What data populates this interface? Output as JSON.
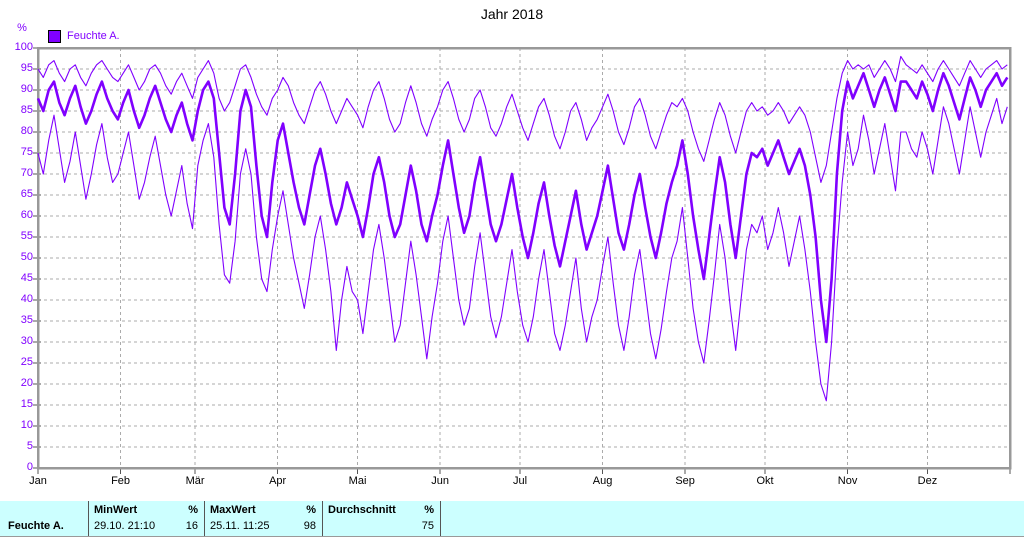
{
  "title": "Jahr 2018",
  "legend": {
    "label": "Feuchte A."
  },
  "colors": {
    "series": "#8000FF",
    "axis_label": "#8000FF",
    "frame": "#999999",
    "grid": "#ABABAB",
    "tick": "#555555",
    "table_bg": "#CCFFFF",
    "table_border": "#555555"
  },
  "chart_data": {
    "type": "line",
    "title": "Jahr 2018",
    "ylabel": "%",
    "xlabel": "",
    "ylim": [
      0,
      100
    ],
    "ytick_step": 5,
    "grid": "dashed",
    "legend_position": "top-left",
    "legend_entries": [
      "Feuchte A."
    ],
    "x_tick_labels": [
      "Jan",
      "Feb",
      "Mär",
      "Apr",
      "Mai",
      "Jun",
      "Jul",
      "Aug",
      "Sep",
      "Okt",
      "Nov",
      "Dez"
    ],
    "month_start_days": [
      0,
      31,
      59,
      90,
      120,
      151,
      181,
      212,
      243,
      273,
      304,
      334
    ],
    "days_in_year": 365,
    "sample_interval_days": 2,
    "series": [
      {
        "name": "daily-max",
        "role": "max",
        "line_width": 1.1,
        "values": [
          95,
          93,
          96,
          97,
          94,
          92,
          95,
          96,
          93,
          91,
          94,
          96,
          97,
          95,
          93,
          92,
          94,
          96,
          93,
          90,
          92,
          95,
          96,
          94,
          91,
          89,
          92,
          94,
          91,
          88,
          93,
          95,
          97,
          94,
          88,
          85,
          87,
          91,
          95,
          96,
          93,
          89,
          86,
          84,
          88,
          90,
          93,
          91,
          87,
          84,
          82,
          86,
          90,
          92,
          89,
          85,
          82,
          85,
          88,
          86,
          84,
          81,
          86,
          90,
          92,
          88,
          83,
          80,
          82,
          87,
          91,
          87,
          82,
          79,
          83,
          86,
          90,
          92,
          88,
          83,
          80,
          83,
          88,
          90,
          86,
          81,
          79,
          82,
          86,
          89,
          85,
          81,
          78,
          82,
          86,
          88,
          84,
          79,
          76,
          80,
          85,
          87,
          83,
          78,
          81,
          83,
          86,
          89,
          85,
          80,
          77,
          81,
          86,
          88,
          84,
          79,
          76,
          80,
          84,
          87,
          86,
          88,
          85,
          80,
          76,
          73,
          78,
          83,
          87,
          84,
          79,
          75,
          80,
          85,
          87,
          85,
          86,
          84,
          85,
          87,
          85,
          82,
          84,
          86,
          84,
          80,
          74,
          68,
          72,
          80,
          88,
          94,
          97,
          95,
          96,
          95,
          96,
          93,
          95,
          97,
          95,
          92,
          98,
          96,
          95,
          94,
          96,
          94,
          92,
          95,
          97,
          95,
          93,
          91,
          94,
          97,
          95,
          93,
          95,
          96,
          97,
          95,
          96
        ]
      },
      {
        "name": "daily-mean",
        "role": "mean",
        "line_width": 2.6,
        "values": [
          88,
          85,
          90,
          92,
          87,
          84,
          88,
          91,
          86,
          82,
          85,
          89,
          92,
          88,
          85,
          83,
          87,
          90,
          85,
          81,
          84,
          88,
          91,
          87,
          83,
          80,
          84,
          87,
          82,
          78,
          85,
          90,
          92,
          88,
          75,
          62,
          58,
          70,
          85,
          90,
          86,
          72,
          60,
          55,
          68,
          78,
          82,
          75,
          68,
          62,
          58,
          65,
          72,
          76,
          70,
          63,
          58,
          62,
          68,
          64,
          60,
          55,
          62,
          70,
          74,
          68,
          60,
          55,
          58,
          65,
          72,
          66,
          58,
          54,
          60,
          65,
          72,
          78,
          70,
          62,
          56,
          60,
          68,
          74,
          66,
          58,
          54,
          58,
          64,
          70,
          62,
          55,
          50,
          56,
          63,
          68,
          60,
          53,
          48,
          54,
          60,
          66,
          58,
          52,
          56,
          60,
          66,
          72,
          64,
          56,
          52,
          58,
          65,
          70,
          62,
          55,
          50,
          56,
          63,
          68,
          72,
          78,
          70,
          60,
          52,
          45,
          55,
          65,
          74,
          68,
          58,
          50,
          60,
          70,
          75,
          74,
          76,
          72,
          75,
          78,
          74,
          70,
          73,
          76,
          72,
          65,
          55,
          40,
          30,
          45,
          70,
          85,
          92,
          88,
          91,
          94,
          90,
          86,
          90,
          93,
          89,
          85,
          92,
          92,
          90,
          88,
          92,
          89,
          85,
          90,
          94,
          91,
          87,
          83,
          88,
          93,
          90,
          86,
          90,
          92,
          94,
          91,
          93
        ]
      },
      {
        "name": "daily-min",
        "role": "min",
        "line_width": 1.1,
        "values": [
          75,
          70,
          78,
          84,
          76,
          68,
          73,
          80,
          72,
          64,
          70,
          77,
          82,
          74,
          68,
          70,
          75,
          80,
          72,
          64,
          68,
          74,
          79,
          72,
          65,
          60,
          66,
          72,
          63,
          57,
          72,
          78,
          82,
          74,
          58,
          46,
          44,
          54,
          70,
          76,
          70,
          55,
          45,
          42,
          52,
          60,
          66,
          58,
          50,
          44,
          38,
          46,
          55,
          60,
          52,
          42,
          28,
          40,
          48,
          42,
          40,
          32,
          42,
          52,
          58,
          50,
          40,
          30,
          34,
          44,
          54,
          46,
          36,
          26,
          36,
          44,
          54,
          60,
          50,
          40,
          34,
          38,
          48,
          56,
          46,
          36,
          31,
          36,
          44,
          52,
          42,
          34,
          30,
          36,
          45,
          52,
          42,
          32,
          28,
          34,
          42,
          50,
          38,
          30,
          36,
          40,
          48,
          55,
          44,
          34,
          28,
          36,
          46,
          52,
          42,
          32,
          26,
          33,
          42,
          50,
          54,
          62,
          50,
          38,
          30,
          25,
          35,
          46,
          58,
          50,
          38,
          28,
          40,
          52,
          58,
          56,
          60,
          52,
          56,
          62,
          56,
          48,
          54,
          60,
          52,
          42,
          30,
          20,
          16,
          30,
          52,
          68,
          80,
          72,
          76,
          84,
          78,
          70,
          76,
          82,
          74,
          66,
          80,
          80,
          76,
          74,
          80,
          76,
          70,
          78,
          86,
          82,
          76,
          70,
          78,
          86,
          80,
          74,
          80,
          84,
          88,
          82,
          86
        ]
      }
    ]
  },
  "table": {
    "row_label": "Feuchte A.",
    "columns": [
      {
        "header": "MinWert",
        "unit": "%"
      },
      {
        "header": "MaxWert",
        "unit": "%"
      },
      {
        "header": "Durchschnitt",
        "unit": "%"
      }
    ],
    "values": {
      "min_datetime": "29.10. 21:10",
      "min_value": "16",
      "max_datetime": "25.11. 11:25",
      "max_value": "98",
      "avg_value": "75"
    }
  }
}
